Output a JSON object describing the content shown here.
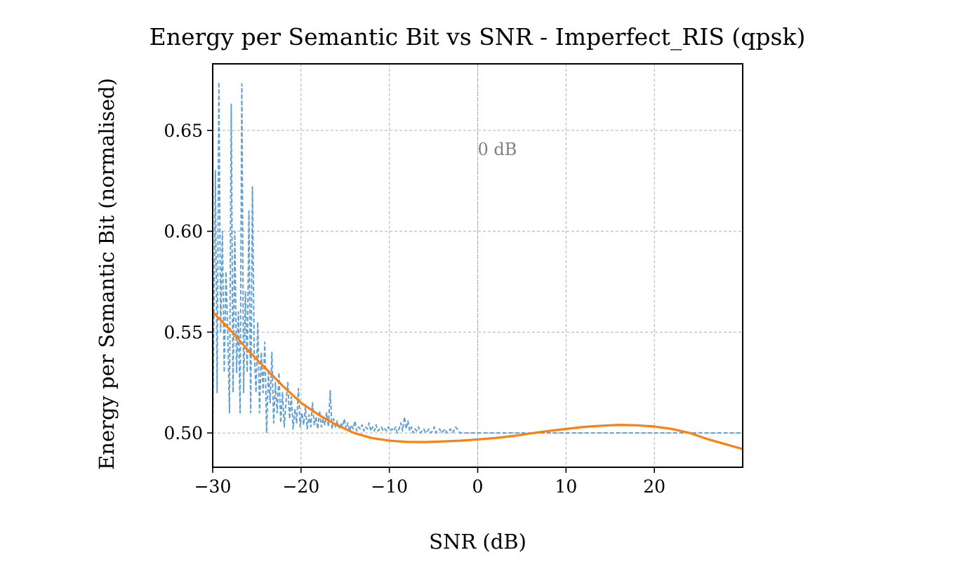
{
  "chart_data": {
    "type": "line",
    "title": "Energy per Semantic Bit vs SNR - Imperfect_RIS (qpsk)",
    "xlabel": "SNR (dB)",
    "ylabel": "Energy per Semantic Bit (normalised)",
    "xlim": [
      -30,
      30
    ],
    "ylim": [
      0.483,
      0.683
    ],
    "xticks": [
      -30,
      -20,
      -10,
      0,
      10,
      20
    ],
    "xtick_labels": [
      "−30",
      "−20",
      "−10",
      "0",
      "10",
      "20"
    ],
    "yticks": [
      0.5,
      0.55,
      0.6,
      0.65
    ],
    "ytick_labels": [
      "0.50",
      "0.55",
      "0.60",
      "0.65"
    ],
    "grid": true,
    "annotation": {
      "text": "0 dB",
      "x": 0,
      "y": 0.641,
      "vline_x": 0
    },
    "series": [
      {
        "style": "dashed",
        "color": "#5b9bd0",
        "x": [
          -30,
          -29.7,
          -29.5,
          -29.3,
          -29.1,
          -28.9,
          -28.7,
          -28.5,
          -28.3,
          -28.1,
          -27.9,
          -27.7,
          -27.5,
          -27.3,
          -27.1,
          -26.9,
          -26.7,
          -26.5,
          -26.3,
          -26.1,
          -25.9,
          -25.7,
          -25.5,
          -25.3,
          -25.1,
          -24.9,
          -24.7,
          -24.5,
          -24.3,
          -24.1,
          -23.9,
          -23.7,
          -23.5,
          -23.3,
          -23.1,
          -22.9,
          -22.7,
          -22.5,
          -22.3,
          -22.1,
          -21.9,
          -21.7,
          -21.5,
          -21.3,
          -21.1,
          -20.9,
          -20.7,
          -20.5,
          -20.3,
          -20.1,
          -19.9,
          -19.7,
          -19.5,
          -19.3,
          -19.1,
          -18.9,
          -18.7,
          -18.5,
          -18.3,
          -18.1,
          -17.9,
          -17.7,
          -17.5,
          -17.3,
          -17.1,
          -16.9,
          -16.7,
          -16.5,
          -16.3,
          -16.1,
          -15.9,
          -15.7,
          -15.5,
          -15.3,
          -15.1,
          -14.9,
          -14.7,
          -14.5,
          -14.3,
          -14.1,
          -13.9,
          -13.7,
          -13.5,
          -13.3,
          -13.1,
          -12.9,
          -12.7,
          -12.5,
          -12.3,
          -12.1,
          -11.9,
          -11.7,
          -11.5,
          -11.3,
          -11.1,
          -10.9,
          -10.7,
          -10.5,
          -10.3,
          -10.1,
          -9.9,
          -9.7,
          -9.5,
          -9.3,
          -9.1,
          -8.9,
          -8.7,
          -8.5,
          -8.3,
          -8.1,
          -7.9,
          -7.7,
          -7.5,
          -7.3,
          -7.1,
          -6.9,
          -6.7,
          -6.5,
          -6.3,
          -6.1,
          -5.9,
          -5.7,
          -5.5,
          -5.3,
          -5.1,
          -4.9,
          -4.7,
          -4.5,
          -4.3,
          -4.1,
          -3.9,
          -3.7,
          -3.5,
          -3.3,
          -3.1,
          -2.9,
          -2.7,
          -2.5,
          -2,
          -1,
          0,
          2,
          4,
          6,
          8,
          10,
          15,
          20,
          25,
          30
        ],
        "values": [
          0.5,
          0.63,
          0.52,
          0.674,
          0.55,
          0.6,
          0.53,
          0.58,
          0.55,
          0.51,
          0.663,
          0.52,
          0.6,
          0.53,
          0.56,
          0.51,
          0.673,
          0.52,
          0.57,
          0.53,
          0.61,
          0.51,
          0.622,
          0.54,
          0.52,
          0.555,
          0.51,
          0.54,
          0.52,
          0.545,
          0.5,
          0.53,
          0.515,
          0.54,
          0.505,
          0.525,
          0.51,
          0.53,
          0.505,
          0.52,
          0.503,
          0.515,
          0.525,
          0.507,
          0.518,
          0.502,
          0.512,
          0.505,
          0.522,
          0.503,
          0.51,
          0.504,
          0.513,
          0.502,
          0.509,
          0.503,
          0.515,
          0.504,
          0.508,
          0.502,
          0.511,
          0.503,
          0.507,
          0.504,
          0.51,
          0.503,
          0.521,
          0.502,
          0.507,
          0.503,
          0.506,
          0.502,
          0.505,
          0.503,
          0.507,
          0.502,
          0.505,
          0.501,
          0.504,
          0.502,
          0.506,
          0.501,
          0.503,
          0.502,
          0.504,
          0.501,
          0.503,
          0.502,
          0.505,
          0.501,
          0.503,
          0.501,
          0.504,
          0.501,
          0.502,
          0.503,
          0.501,
          0.502,
          0.501,
          0.503,
          0.501,
          0.502,
          0.501,
          0.503,
          0.5,
          0.502,
          0.505,
          0.501,
          0.508,
          0.502,
          0.506,
          0.501,
          0.503,
          0.5,
          0.502,
          0.501,
          0.503,
          0.5,
          0.501,
          0.502,
          0.5,
          0.501,
          0.502,
          0.5,
          0.501,
          0.503,
          0.5,
          0.501,
          0.502,
          0.5,
          0.501,
          0.502,
          0.5,
          0.501,
          0.502,
          0.5,
          0.501,
          0.503,
          0.5,
          0.5,
          0.5,
          0.5,
          0.5,
          0.5,
          0.5,
          0.5,
          0.5,
          0.5,
          0.5,
          0.5
        ]
      },
      {
        "style": "solid",
        "color": "#ff7f0e",
        "x": [
          -30,
          -28,
          -26,
          -24,
          -22,
          -20,
          -18,
          -16,
          -14,
          -12,
          -10,
          -8,
          -6,
          -4,
          -2,
          0,
          2,
          4,
          6,
          8,
          10,
          12,
          14,
          16,
          18,
          20,
          22,
          24,
          26,
          28,
          30
        ],
        "values": [
          0.56,
          0.551,
          0.541,
          0.532,
          0.523,
          0.515,
          0.509,
          0.504,
          0.5,
          0.4975,
          0.4962,
          0.4956,
          0.4955,
          0.4958,
          0.4962,
          0.4968,
          0.4975,
          0.4985,
          0.4998,
          0.501,
          0.502,
          0.503,
          0.5036,
          0.504,
          0.5038,
          0.5032,
          0.502,
          0.5,
          0.497,
          0.4945,
          0.492
        ]
      }
    ]
  }
}
